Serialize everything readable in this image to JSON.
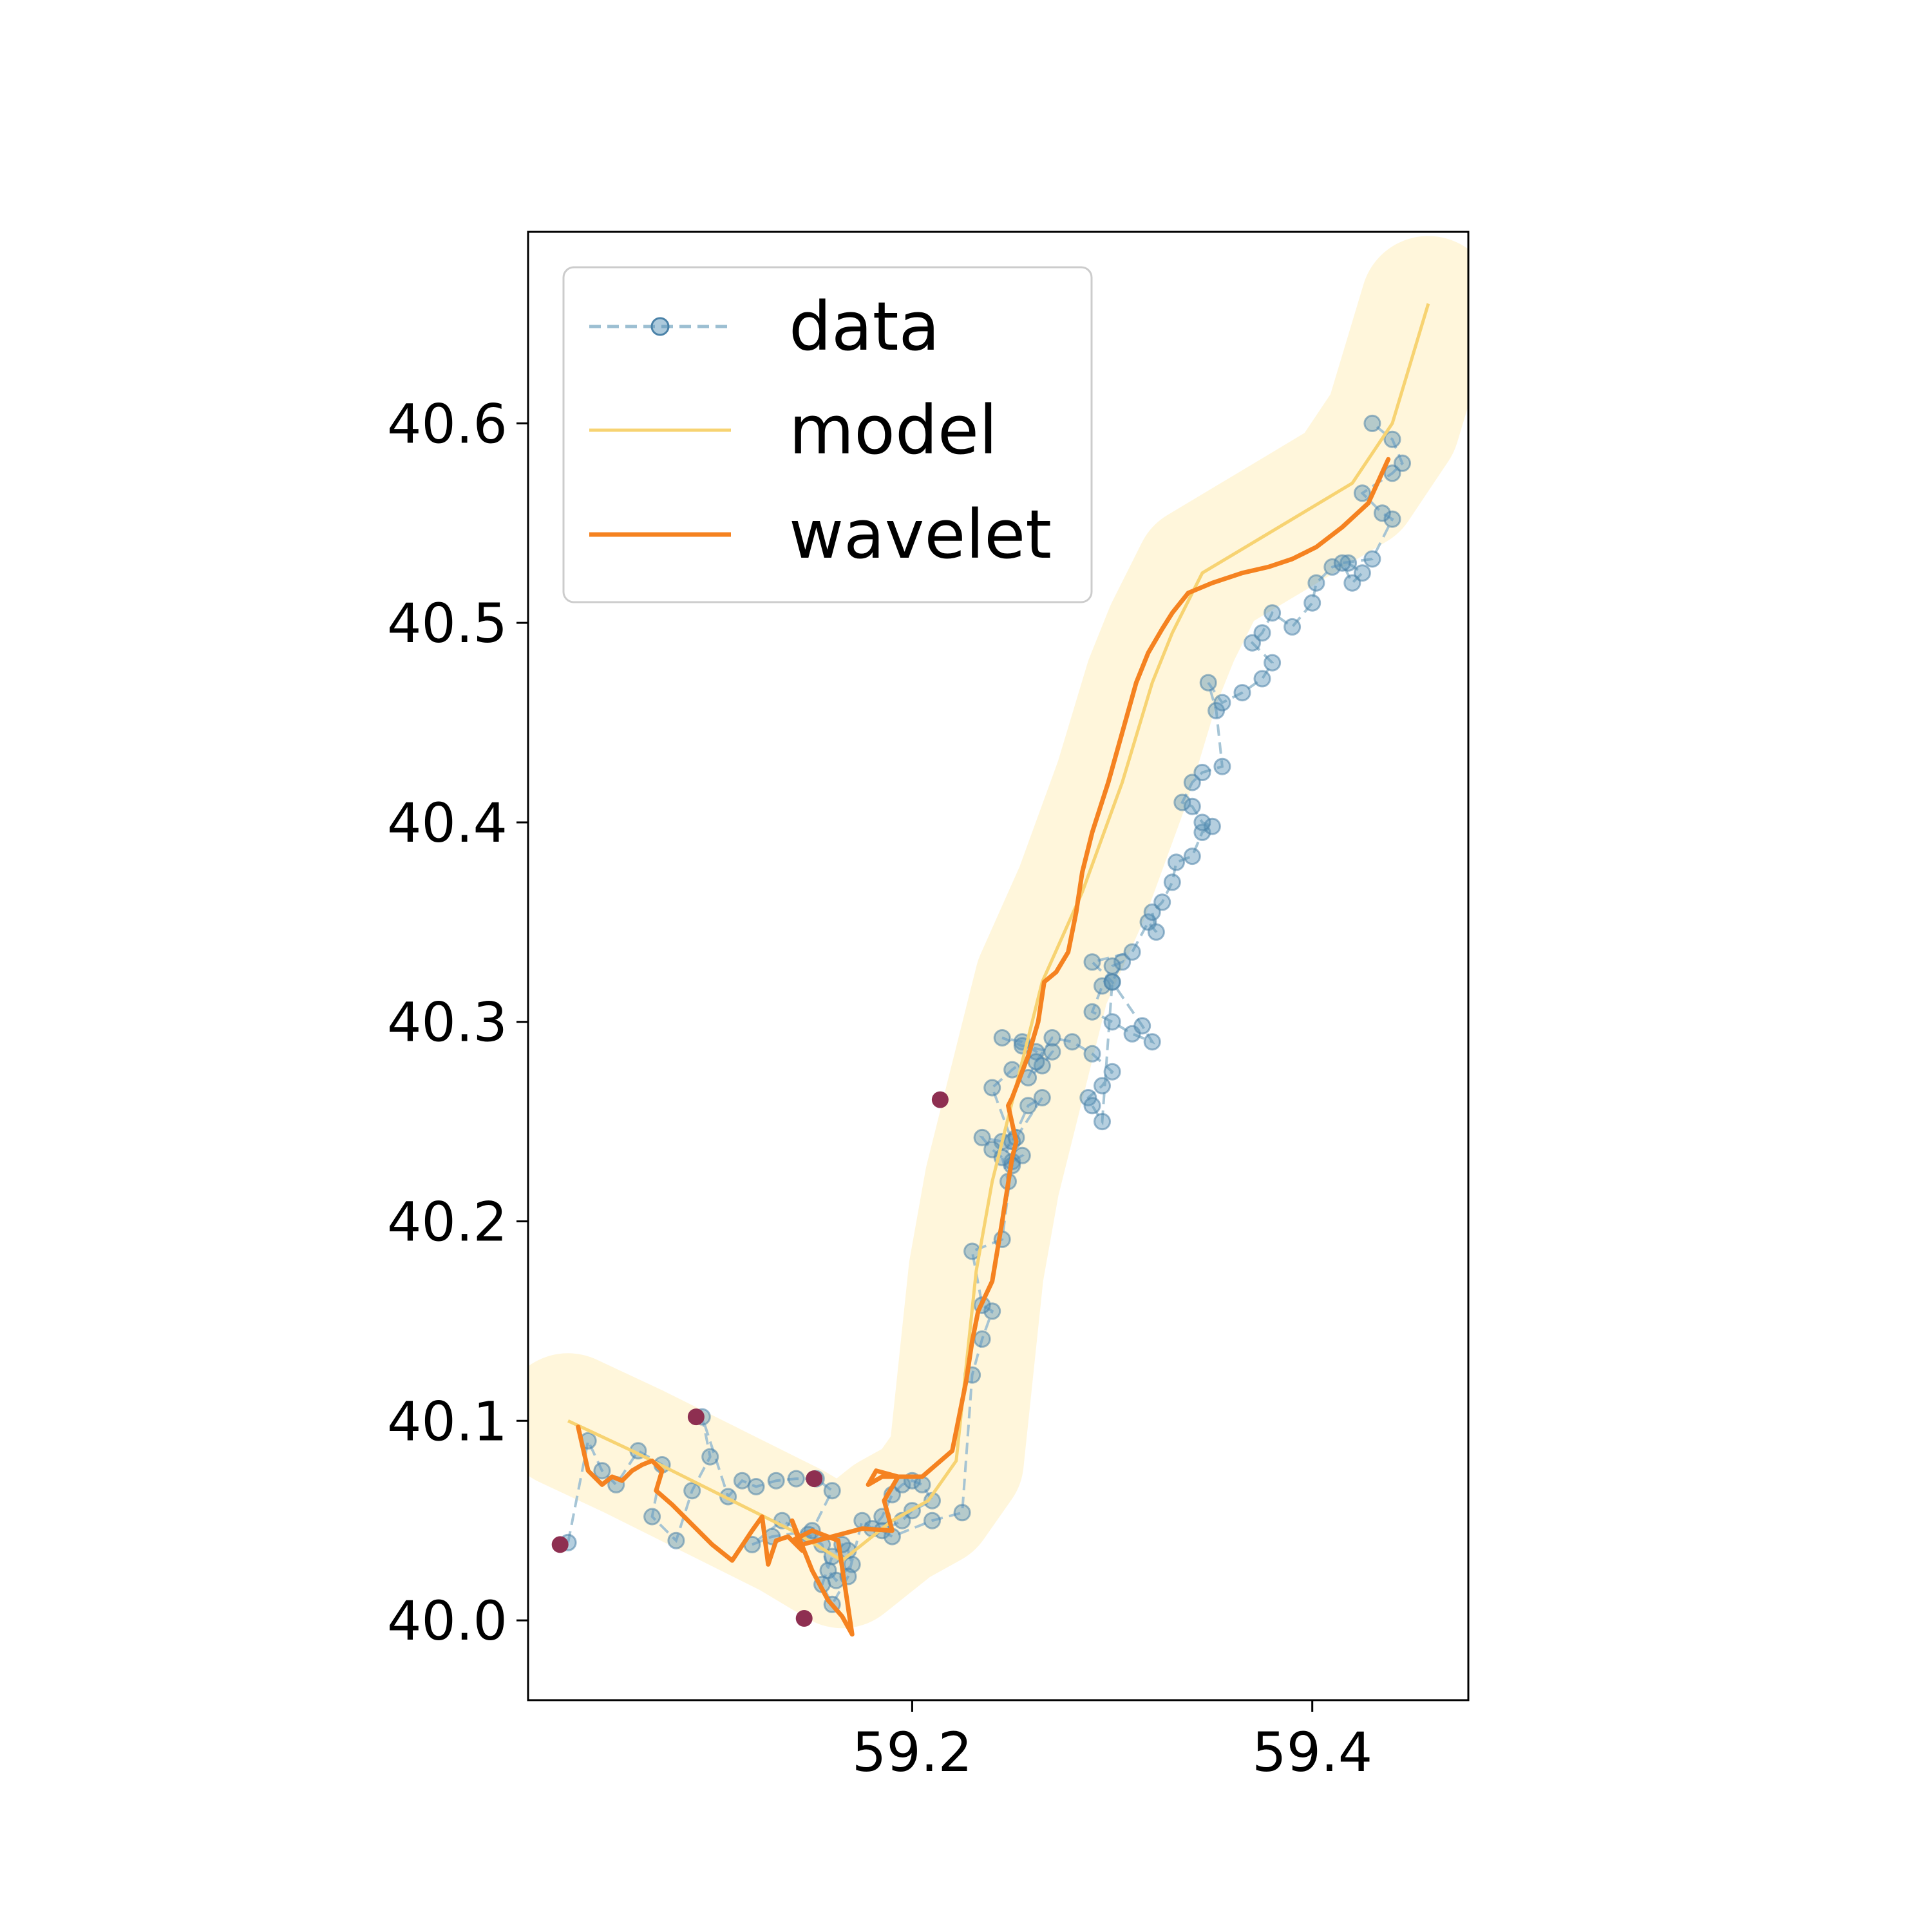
{
  "chart_data": {
    "type": "line",
    "title": "",
    "xlabel": "",
    "ylabel": "",
    "xlim": [
      59.008,
      59.478
    ],
    "ylim": [
      39.96,
      40.696
    ],
    "xticks": [
      59.2,
      59.4
    ],
    "yticks": [
      40.0,
      40.1,
      40.2,
      40.3,
      40.4,
      40.5,
      40.6
    ],
    "grid": false,
    "legend_position": "top-left",
    "colors": {
      "data": "#5b95b9",
      "data_line": "#9cbfd2",
      "model": "#f7d372",
      "model_band": "#fff3cf",
      "wavelet": "#f58220",
      "outlier": "#8e2f51"
    },
    "legend": [
      {
        "key": "data",
        "label": "data"
      },
      {
        "key": "model",
        "label": "model"
      },
      {
        "key": "wavelet",
        "label": "wavelet"
      }
    ],
    "series": [
      {
        "name": "data",
        "style": "dashed-markers",
        "x": [
          59.028,
          59.038,
          59.045,
          59.052,
          59.063,
          59.075,
          59.07,
          59.082,
          59.09,
          59.099,
          59.095,
          59.108,
          59.115,
          59.122,
          59.132,
          59.142,
          59.152,
          59.16,
          59.15,
          59.13,
          59.12,
          59.135,
          59.148,
          59.155,
          59.158,
          59.162,
          59.17,
          59.168,
          59.165,
          59.16,
          59.155,
          59.16,
          59.168,
          59.175,
          59.18,
          59.185,
          59.19,
          59.195,
          59.2,
          59.205,
          59.21,
          59.2,
          59.195,
          59.185,
          59.19,
          59.21,
          59.225,
          59.23,
          59.235,
          59.24,
          59.235,
          59.23,
          59.245,
          59.25,
          59.255,
          59.245,
          59.235,
          59.24,
          59.25,
          59.248,
          59.245,
          59.252,
          59.265,
          59.258,
          59.25,
          59.24,
          59.25,
          59.262,
          59.255,
          59.245,
          59.255,
          59.27,
          59.265,
          59.258,
          59.262,
          59.27,
          59.28,
          59.29,
          59.3,
          59.295,
          59.288,
          59.29,
          59.295,
          59.3,
          59.305,
          59.3,
          59.295,
          59.29,
          59.3,
          59.31,
          59.32,
          59.315,
          59.3,
          59.29,
          59.31,
          59.318,
          59.322,
          59.32,
          59.325,
          59.33,
          59.332,
          59.34,
          59.345,
          59.35,
          59.345,
          59.34,
          59.335,
          59.34,
          59.345,
          59.355,
          59.352,
          59.348,
          59.355,
          59.365,
          59.375,
          59.38,
          59.37,
          59.375,
          59.38,
          59.39,
          59.4,
          59.402,
          59.41,
          59.418,
          59.425,
          59.42,
          59.415,
          59.43,
          59.44,
          59.435,
          59.425,
          59.44,
          59.445,
          59.44,
          59.43
        ],
        "y": [
          40.039,
          40.09,
          40.075,
          40.068,
          40.085,
          40.078,
          40.052,
          40.04,
          40.065,
          40.082,
          40.102,
          40.062,
          40.07,
          40.067,
          40.07,
          40.071,
          40.071,
          40.065,
          40.045,
          40.042,
          40.038,
          40.05,
          40.043,
          40.038,
          40.025,
          40.02,
          40.028,
          40.035,
          40.038,
          40.032,
          40.018,
          40.008,
          40.022,
          40.05,
          40.046,
          40.052,
          40.063,
          40.068,
          40.07,
          40.068,
          40.06,
          40.055,
          40.05,
          40.045,
          40.042,
          40.05,
          40.054,
          40.123,
          40.141,
          40.155,
          40.158,
          40.185,
          40.191,
          40.23,
          40.233,
          40.24,
          40.242,
          40.236,
          40.228,
          40.22,
          40.232,
          40.242,
          40.262,
          40.258,
          40.24,
          40.267,
          40.276,
          40.285,
          40.29,
          40.292,
          40.288,
          40.285,
          40.278,
          40.272,
          40.28,
          40.292,
          40.29,
          40.284,
          40.275,
          40.268,
          40.262,
          40.258,
          40.25,
          40.32,
          40.33,
          40.328,
          40.318,
          40.305,
          40.3,
          40.294,
          40.29,
          40.298,
          40.32,
          40.33,
          40.335,
          40.35,
          40.345,
          40.355,
          40.36,
          40.37,
          40.38,
          40.383,
          40.395,
          40.398,
          40.4,
          40.408,
          40.41,
          40.42,
          40.425,
          40.428,
          40.456,
          40.47,
          40.46,
          40.465,
          40.472,
          40.48,
          40.49,
          40.495,
          40.505,
          40.498,
          40.51,
          40.52,
          40.528,
          40.53,
          40.525,
          40.52,
          40.53,
          40.532,
          40.552,
          40.555,
          40.565,
          40.575,
          40.58,
          40.592,
          40.6
        ],
        "outliers_x": [
          59.024,
          59.092,
          59.146,
          59.151,
          59.214
        ],
        "outliers_y": [
          40.038,
          40.102,
          40.001,
          40.071,
          40.261
        ]
      },
      {
        "name": "model",
        "style": "line-with-band",
        "x": [
          59.028,
          59.06,
          59.1,
          59.14,
          59.165,
          59.19,
          59.208,
          59.222,
          59.232,
          59.24,
          59.25,
          59.265,
          59.285,
          59.305,
          59.32,
          59.33,
          59.345,
          59.37,
          59.395,
          59.42,
          59.44,
          59.458
        ],
        "y": [
          40.1,
          40.085,
          40.065,
          40.045,
          40.03,
          40.05,
          40.06,
          40.08,
          40.175,
          40.22,
          40.26,
          40.32,
          40.365,
          40.42,
          40.47,
          40.495,
          40.525,
          40.54,
          40.555,
          40.57,
          40.6,
          40.66
        ]
      },
      {
        "name": "wavelet",
        "style": "line",
        "x": [
          59.033,
          59.038,
          59.045,
          59.05,
          59.055,
          59.06,
          59.065,
          59.07,
          59.075,
          59.072,
          59.08,
          59.09,
          59.1,
          59.11,
          59.12,
          59.125,
          59.128,
          59.132,
          59.138,
          59.145,
          59.14,
          59.15,
          59.158,
          59.165,
          59.17,
          59.163,
          59.15,
          59.14,
          59.145,
          59.16,
          59.175,
          59.19,
          59.186,
          59.193,
          59.182,
          59.178,
          59.185,
          59.205,
          59.22,
          59.227,
          59.23,
          59.233,
          59.24,
          59.245,
          59.25,
          59.252,
          59.248,
          59.25,
          59.258,
          59.263,
          59.266,
          59.272,
          59.278,
          59.282,
          59.285,
          59.29,
          59.298,
          59.305,
          59.312,
          59.318,
          59.325,
          59.33,
          59.338,
          59.35,
          59.365,
          59.378,
          59.39,
          59.402,
          59.415,
          59.428,
          59.438
        ],
        "y": [
          40.097,
          40.075,
          40.068,
          40.072,
          40.07,
          40.075,
          40.078,
          40.08,
          40.075,
          40.065,
          40.058,
          40.048,
          40.038,
          40.03,
          40.045,
          40.052,
          40.028,
          40.04,
          40.042,
          40.035,
          40.05,
          40.025,
          40.01,
          40.002,
          39.993,
          40.04,
          40.045,
          40.04,
          40.038,
          40.042,
          40.046,
          40.045,
          40.06,
          40.072,
          40.075,
          40.068,
          40.072,
          40.072,
          40.085,
          40.12,
          40.14,
          40.155,
          40.17,
          40.2,
          40.232,
          40.24,
          40.258,
          40.262,
          40.283,
          40.3,
          40.32,
          40.325,
          40.335,
          40.355,
          40.375,
          40.395,
          40.42,
          40.445,
          40.47,
          40.485,
          40.497,
          40.505,
          40.515,
          40.52,
          40.525,
          40.528,
          40.532,
          40.538,
          40.548,
          40.56,
          40.582
        ]
      }
    ]
  }
}
